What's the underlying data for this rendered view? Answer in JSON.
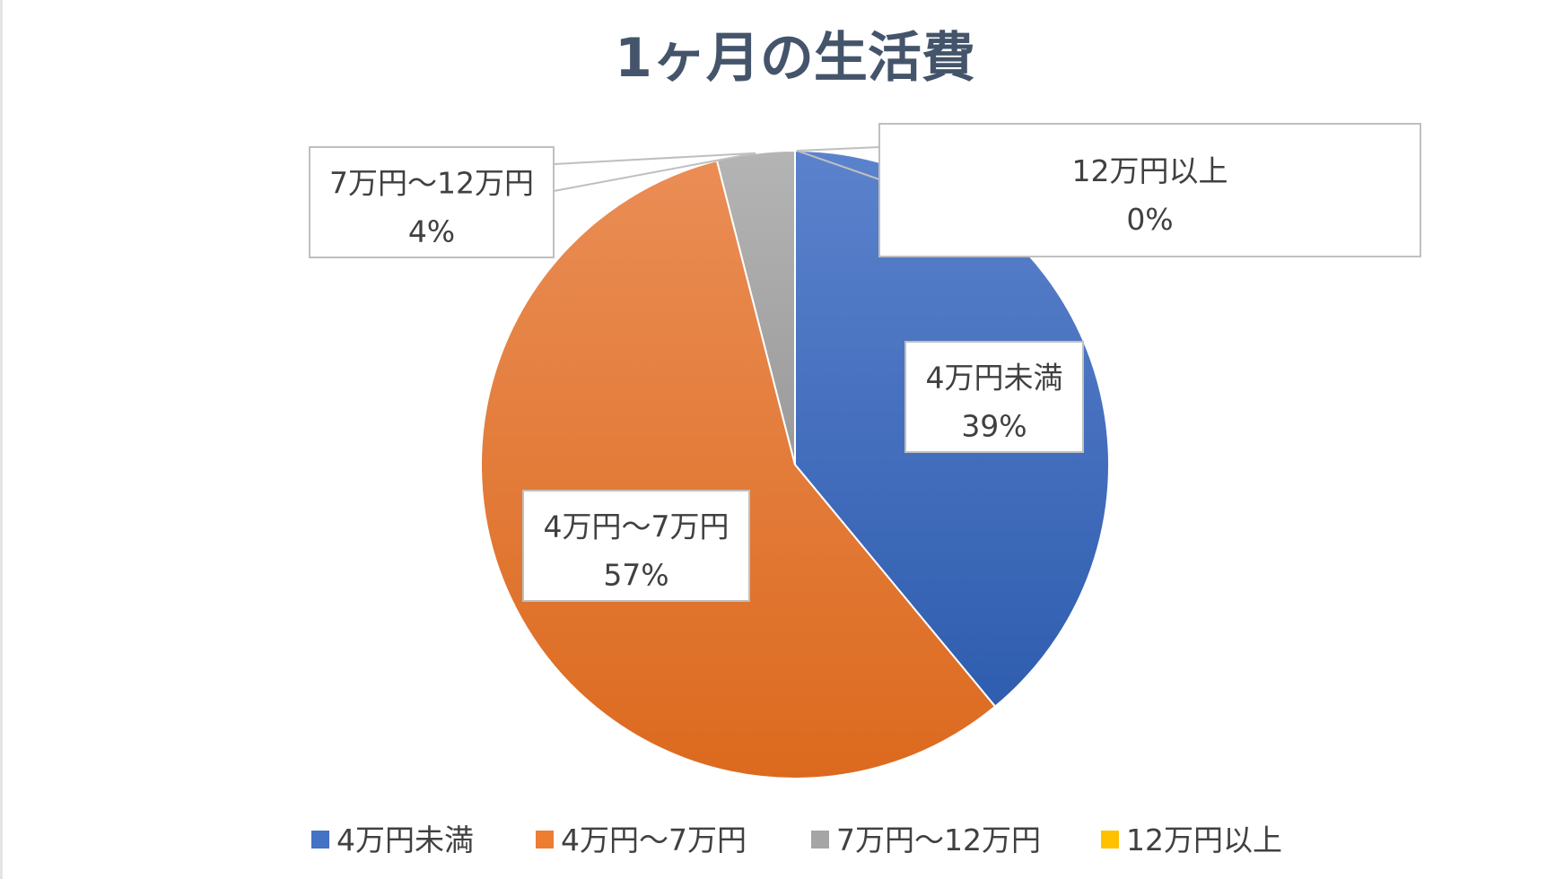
{
  "chart_data": {
    "type": "pie",
    "title": "1ヶ月の生活費",
    "categories": [
      "4万円未満",
      "4万円〜7万円",
      "7万円〜12万円",
      "12万円以上"
    ],
    "values": [
      39,
      57,
      4,
      0
    ],
    "value_labels": [
      "39%",
      "57%",
      "4%",
      "0%"
    ],
    "colors": [
      "#4472c4",
      "#ed7d31",
      "#a5a5a5",
      "#ffc000"
    ],
    "start_angle": "12 o'clock",
    "direction": "clockwise",
    "legend": "bottom",
    "legend_entries": [
      "4万円未満",
      "4万円〜7万円",
      "7万円〜12万円",
      "12万円以上"
    ]
  }
}
